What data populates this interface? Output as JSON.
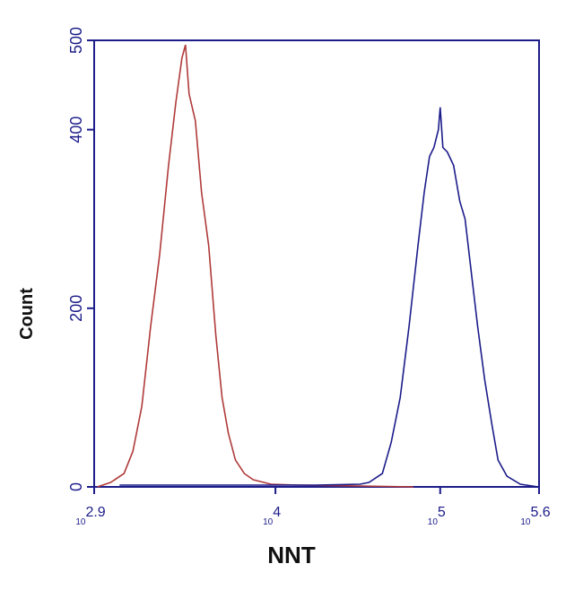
{
  "chart_data": {
    "type": "line",
    "xlabel": "NNT",
    "ylabel": "Count",
    "xscale": "log",
    "xlim": [
      794,
      398107
    ],
    "ylim": [
      0,
      500
    ],
    "xticks": [
      {
        "value": 794,
        "label": "10",
        "sup": "2.9"
      },
      {
        "value": 10000,
        "label": "10",
        "sup": "4"
      },
      {
        "value": 100000,
        "label": "10",
        "sup": "5"
      },
      {
        "value": 398107,
        "label": "10",
        "sup": "5.6"
      }
    ],
    "yticks": [
      0,
      200,
      400,
      500
    ],
    "series": [
      {
        "color": "#b03a3a",
        "x": [
          830,
          1000,
          1205,
          1365,
          1545,
          1750,
          1982,
          2244,
          2483,
          2705,
          2844,
          2992,
          3266,
          3558,
          3934,
          4345,
          4742,
          5176,
          5717,
          6471,
          7328,
          9397,
          13650,
          32660,
          68870
        ],
        "values": [
          0,
          5,
          15,
          40,
          90,
          180,
          260,
          360,
          430,
          480,
          495,
          440,
          410,
          330,
          270,
          170,
          100,
          60,
          30,
          15,
          8,
          3,
          2,
          1,
          0
        ]
      },
      {
        "color": "#1c1c8a",
        "x": [
          1132,
          5047,
          17510,
          32660,
          36980,
          44560,
          50470,
          57150,
          64710,
          73280,
          79980,
          86130,
          91630,
          97500,
          100000,
          103800,
          110400,
          120500,
          131500,
          141600,
          154500,
          168600,
          186200,
          206000,
          224400,
          254100,
          306200,
          393600
        ],
        "values": [
          2,
          2,
          2,
          3,
          5,
          15,
          50,
          100,
          180,
          270,
          330,
          370,
          380,
          400,
          425,
          380,
          375,
          360,
          320,
          300,
          240,
          180,
          120,
          70,
          30,
          12,
          3,
          0
        ]
      }
    ]
  }
}
